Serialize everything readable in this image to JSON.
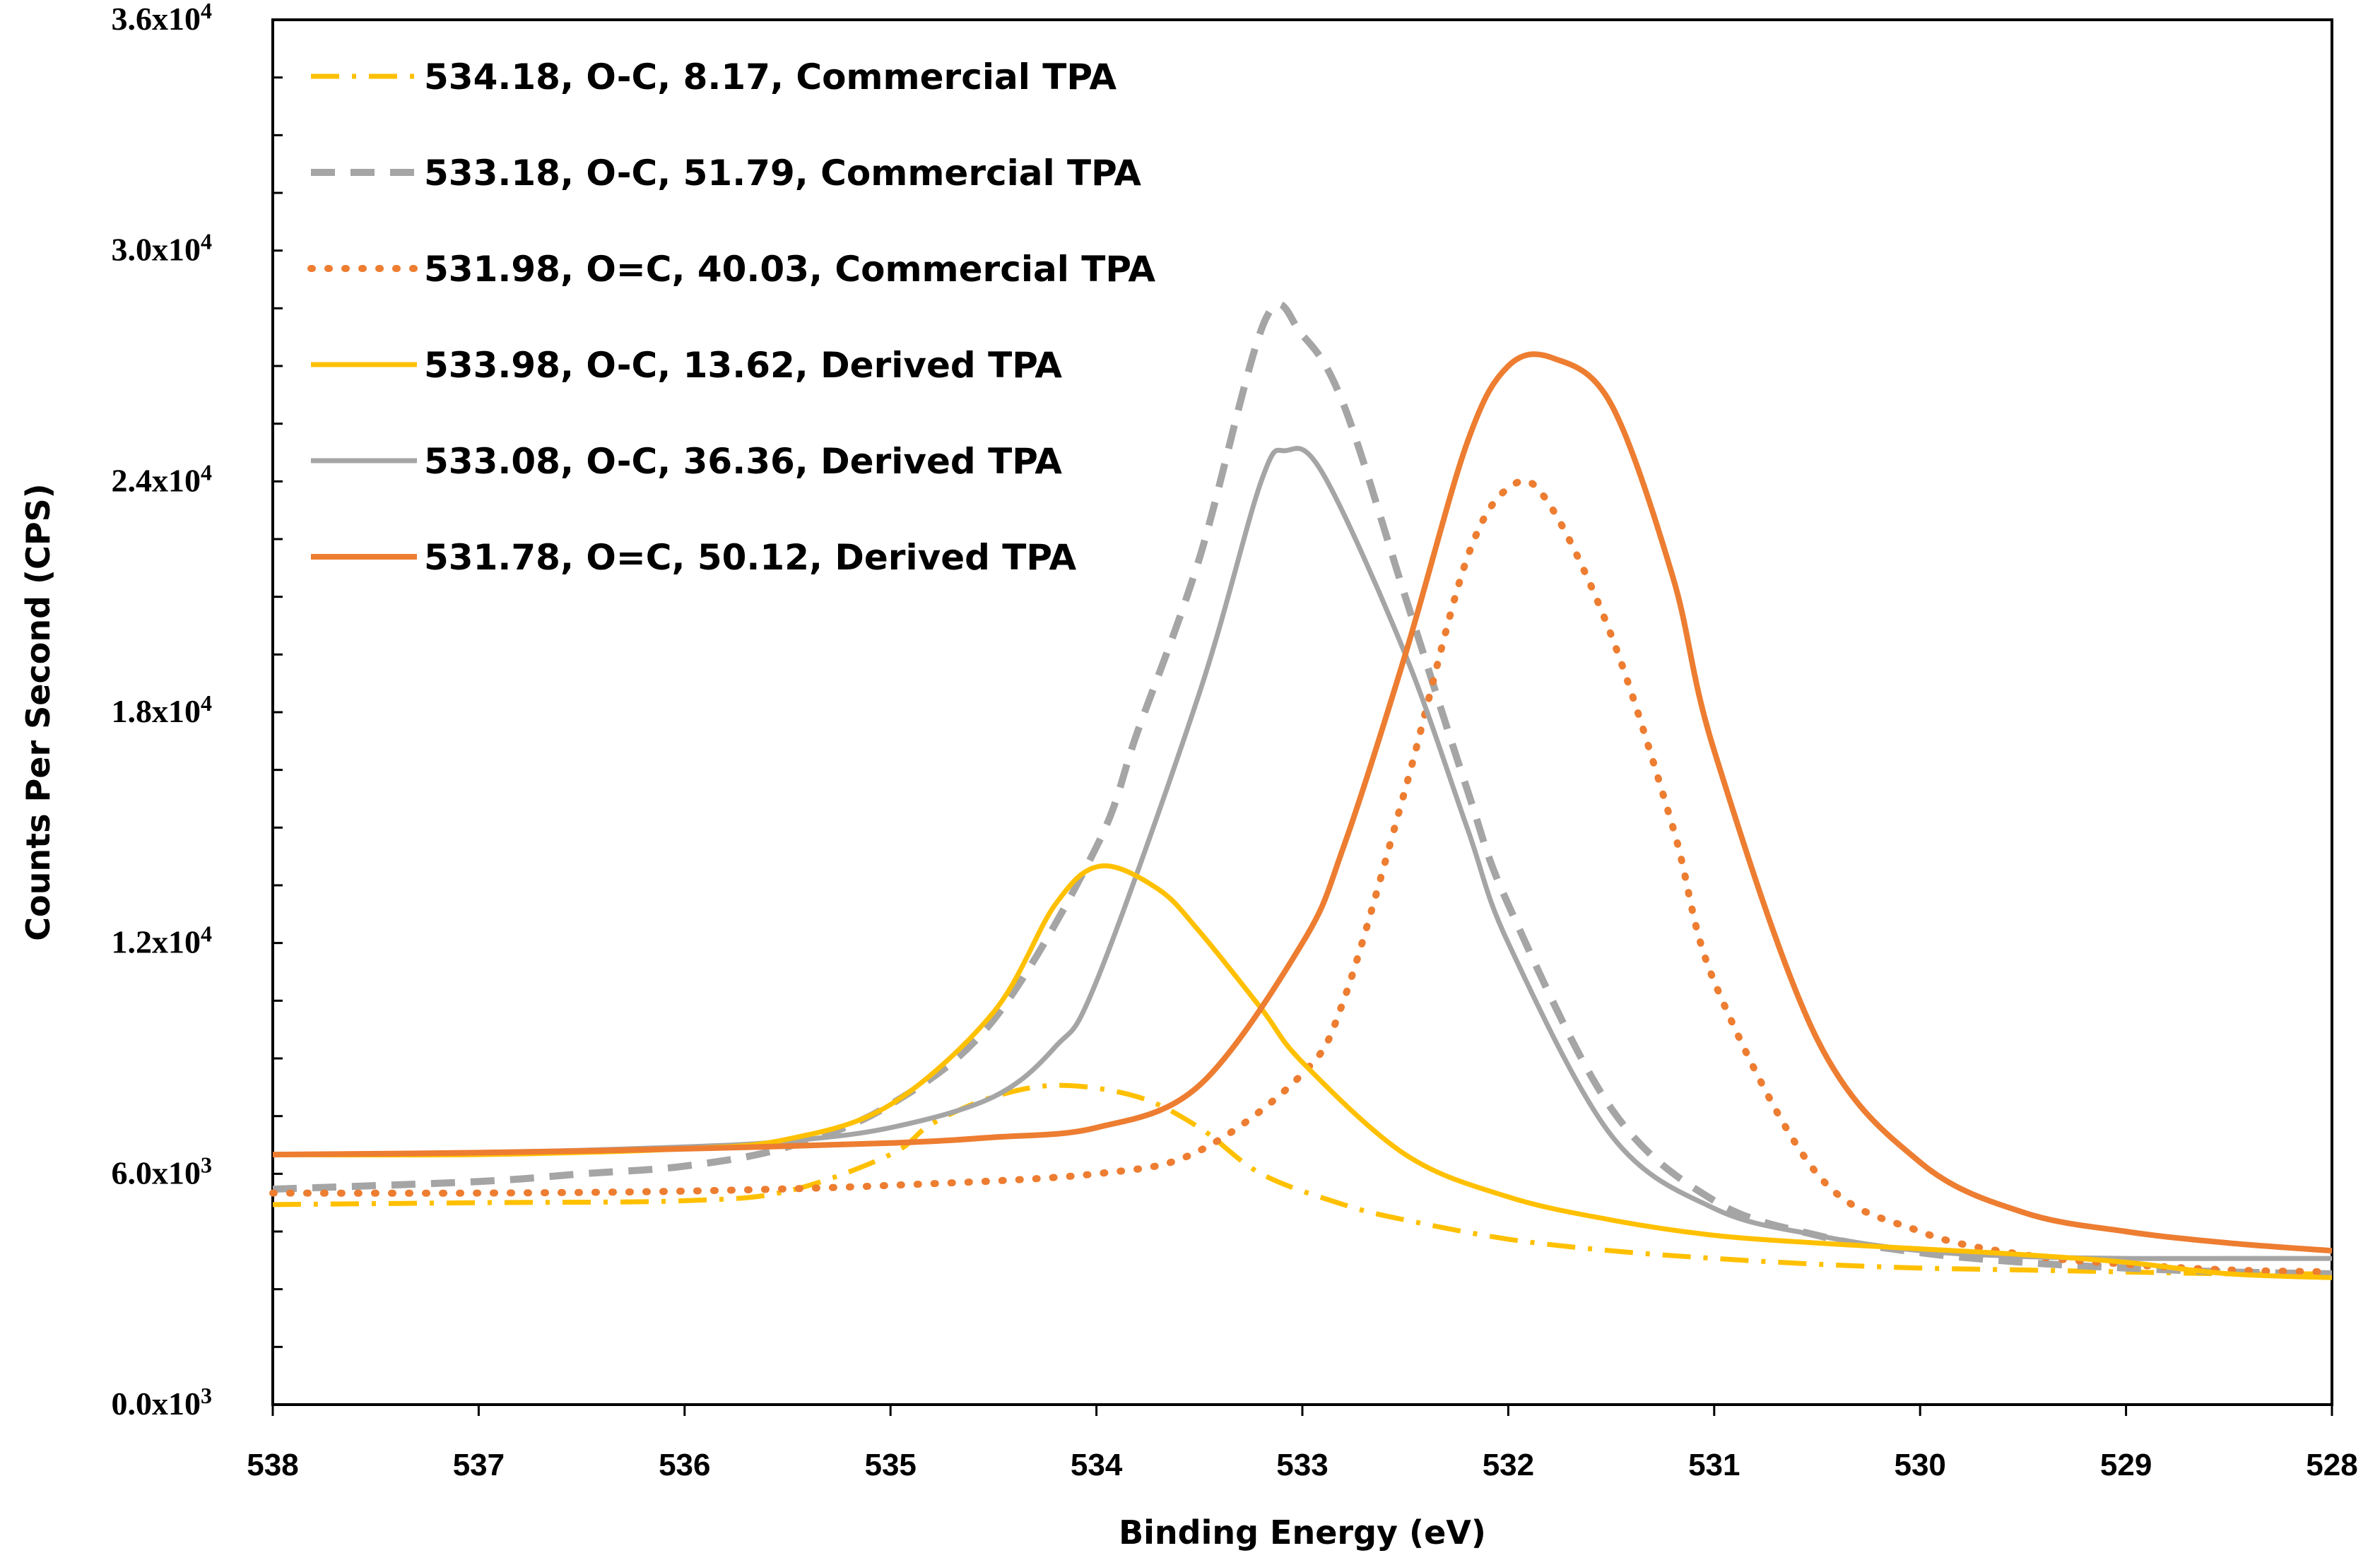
{
  "chart_data": {
    "type": "line",
    "title": "",
    "xlabel": "Binding Energy (eV)",
    "ylabel": "Counts Per Second (CPS)",
    "xlim": [
      538,
      528
    ],
    "ylim": [
      0,
      36000
    ],
    "x_ticks": [
      538,
      537,
      536,
      535,
      534,
      533,
      532,
      531,
      530,
      529,
      528
    ],
    "y_ticks": [
      {
        "value": 0,
        "mantissa": "0.0x10",
        "exp": "3"
      },
      {
        "value": 6000,
        "mantissa": "6.0x10",
        "exp": "3"
      },
      {
        "value": 12000,
        "mantissa": "1.2x10",
        "exp": "4"
      },
      {
        "value": 18000,
        "mantissa": "1.8x10",
        "exp": "4"
      },
      {
        "value": 24000,
        "mantissa": "2.4x10",
        "exp": "4"
      },
      {
        "value": 30000,
        "mantissa": "3.0x10",
        "exp": "4"
      },
      {
        "value": 36000,
        "mantissa": "3.6x10",
        "exp": "4"
      }
    ],
    "legend_position": "top-left",
    "series": [
      {
        "name": "534.18, O-C, 8.17, Commercial TPA",
        "color": "#FFC000",
        "dash": "dashdot",
        "width": 7,
        "x": [
          538,
          537,
          536,
          535.5,
          535,
          534.8,
          534.5,
          534.18,
          533.8,
          533.5,
          533.2,
          532.8,
          532.5,
          532,
          531.5,
          531,
          530.5,
          530,
          529.5,
          529,
          528.5,
          528
        ],
        "y": [
          5200,
          5250,
          5300,
          5550,
          6500,
          7300,
          8000,
          8300,
          8000,
          7200,
          6000,
          5200,
          4800,
          4300,
          4000,
          3800,
          3650,
          3550,
          3500,
          3450,
          3400,
          3400
        ]
      },
      {
        "name": "533.18, O-C, 51.79, Commercial TPA",
        "color": "#A5A5A5",
        "dash": "dash",
        "width": 10,
        "x": [
          538,
          537,
          536.5,
          536,
          535.5,
          535,
          534.5,
          534,
          533.8,
          533.5,
          533.18,
          533,
          532.8,
          532.5,
          532.2,
          532,
          531.5,
          531,
          530.5,
          530,
          529.5,
          529,
          528.5,
          528
        ],
        "y": [
          5600,
          5800,
          6000,
          6200,
          6700,
          7800,
          10000,
          14500,
          17500,
          22000,
          28200,
          27800,
          26000,
          21000,
          16000,
          13000,
          7700,
          5300,
          4400,
          3950,
          3700,
          3550,
          3450,
          3400
        ]
      },
      {
        "name": "531.98, O=C, 40.03, Commercial TPA",
        "color": "#ED7D31",
        "dash": "dot",
        "width": 10,
        "x": [
          538,
          537,
          536,
          535,
          534,
          533.5,
          533,
          532.8,
          532.5,
          532.2,
          531.98,
          531.8,
          531.5,
          531.2,
          531,
          530.5,
          530,
          529.5,
          529,
          528.5,
          528
        ],
        "y": [
          5500,
          5500,
          5550,
          5700,
          6000,
          6600,
          8600,
          10500,
          16000,
          22000,
          23900,
          23400,
          20000,
          15000,
          11000,
          6000,
          4500,
          3900,
          3650,
          3500,
          3450
        ]
      },
      {
        "name": "533.98, O-C, 13.62, Derived TPA",
        "color": "#FFC000",
        "dash": "solid",
        "width": 7,
        "x": [
          538,
          537,
          536,
          535.5,
          535,
          534.5,
          534.2,
          533.98,
          533.7,
          533.5,
          533.2,
          533,
          532.5,
          532,
          531.5,
          531,
          530.5,
          530,
          529.5,
          529,
          528.5,
          528
        ],
        "y": [
          6500,
          6500,
          6650,
          6900,
          7800,
          10200,
          13000,
          14000,
          13400,
          12300,
          10300,
          8900,
          6500,
          5400,
          4800,
          4400,
          4200,
          4050,
          3900,
          3700,
          3400,
          3300
        ]
      },
      {
        "name": "533.08, O-C, 36.36, Derived TPA",
        "color": "#A5A5A5",
        "dash": "solid",
        "width": 7,
        "x": [
          538,
          537,
          536,
          535.5,
          535,
          534.5,
          534.2,
          534,
          533.5,
          533.2,
          533.08,
          532.9,
          532.5,
          532.2,
          532,
          531.5,
          531,
          530.5,
          530,
          529.5,
          529,
          528.5,
          528
        ],
        "y": [
          6500,
          6550,
          6700,
          6850,
          7200,
          8000,
          9300,
          11000,
          18500,
          24000,
          24800,
          24200,
          19500,
          15000,
          12000,
          7000,
          5100,
          4400,
          4000,
          3850,
          3800,
          3800,
          3800
        ]
      },
      {
        "name": "531.78, O=C, 50.12, Derived TPA",
        "color": "#ED7D31",
        "dash": "solid",
        "width": 8,
        "x": [
          538,
          537,
          536,
          535,
          534.5,
          534,
          533.5,
          533,
          532.8,
          532.5,
          532.2,
          532,
          531.78,
          531.5,
          531.2,
          531,
          530.5,
          530,
          529.5,
          529,
          528.5,
          528
        ],
        "y": [
          6500,
          6550,
          6650,
          6800,
          6950,
          7200,
          8300,
          12000,
          14500,
          19500,
          25000,
          27000,
          27200,
          26000,
          21500,
          17000,
          9500,
          6300,
          5000,
          4500,
          4200,
          4000
        ]
      }
    ]
  }
}
